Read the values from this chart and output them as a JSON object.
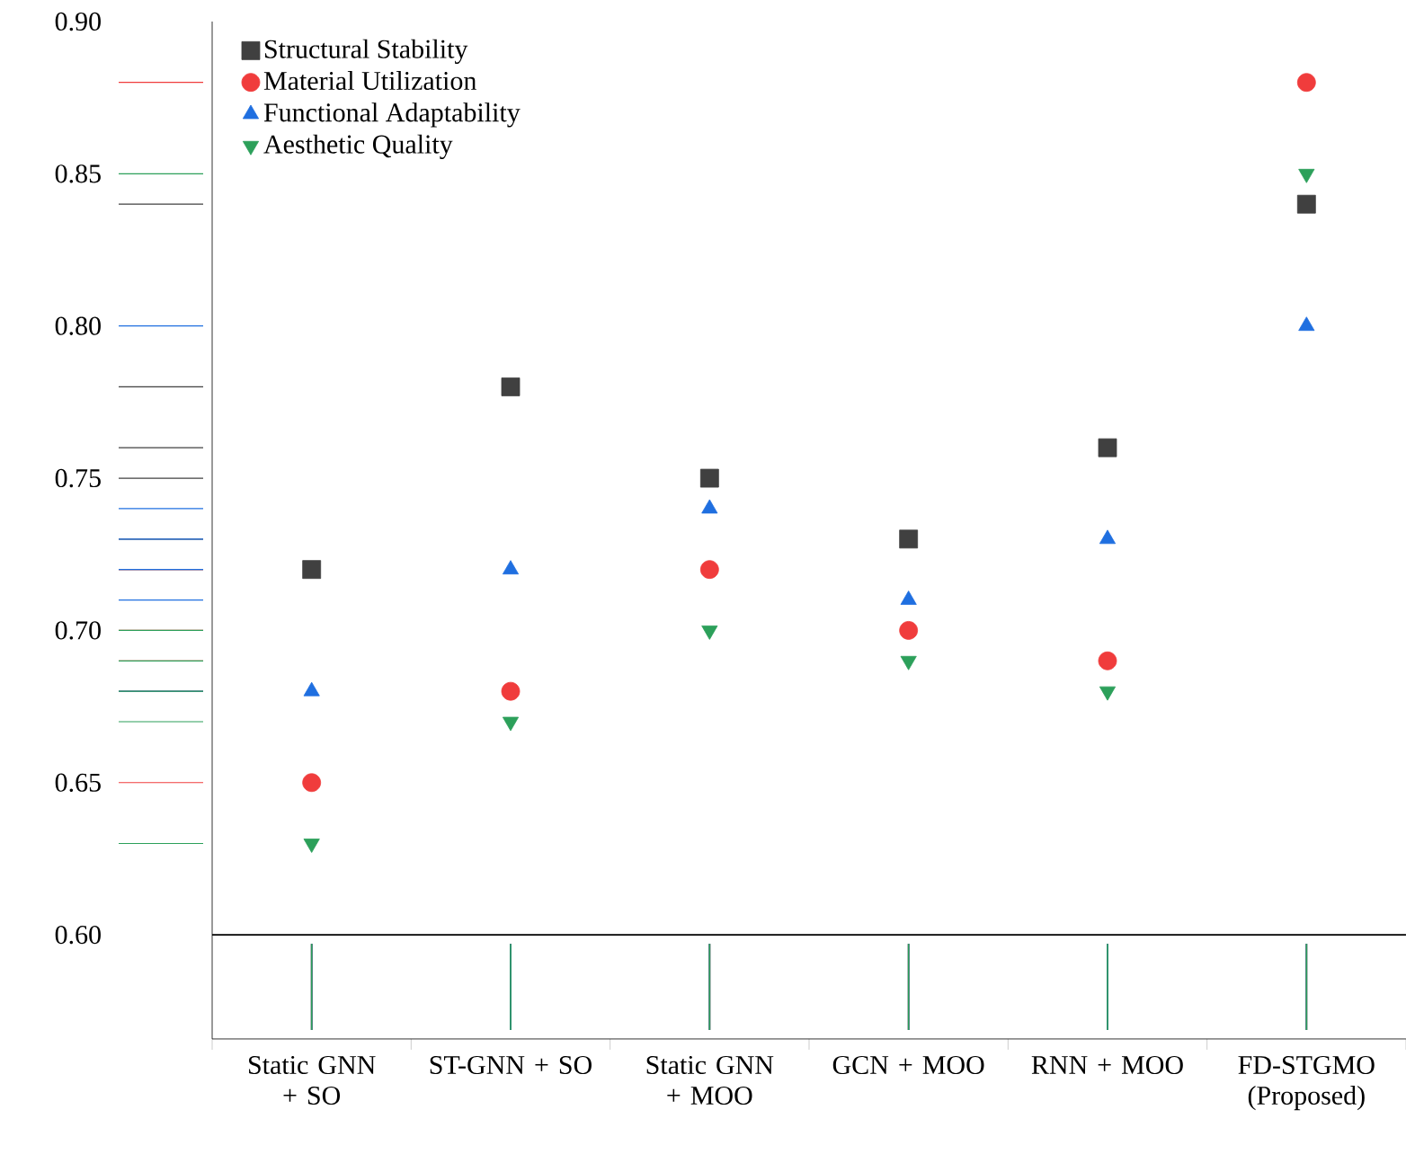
{
  "chart_data": {
    "type": "scatter",
    "categories": [
      "Static GNN + SO",
      "ST-GNN + SO",
      "Static GNN + MOO",
      "GCN + MOO",
      "RNN + MOO",
      "FD-STGMO (Proposed)"
    ],
    "ylim": [
      0.6,
      0.9
    ],
    "yticks": [
      {
        "value": 0.6,
        "label": "0.60"
      },
      0.65,
      {
        "value": 0.7,
        "label": "0.70"
      },
      0.75,
      {
        "value": 0.8,
        "label": "0.80"
      },
      0.85,
      {
        "value": 0.9,
        "label": "0.90"
      }
    ],
    "legend": "top left",
    "grid": false,
    "series": [
      {
        "name": "Structural Stability",
        "color": "#404040",
        "marker": "square",
        "values": [
          0.72,
          0.78,
          0.75,
          0.73,
          0.76,
          0.84
        ]
      },
      {
        "name": "Material Utilization",
        "color": "#f03c3c",
        "marker": "circle",
        "values": [
          0.65,
          0.68,
          0.72,
          0.7,
          0.69,
          0.88
        ]
      },
      {
        "name": "Functional Adaptability",
        "color": "#1f6fe0",
        "marker": "triangle",
        "values": [
          0.68,
          0.72,
          0.74,
          0.71,
          0.73,
          0.8
        ]
      },
      {
        "name": "Aesthetic Quality",
        "color": "#2ca05a",
        "marker": "triangle down",
        "values": [
          0.63,
          0.67,
          0.7,
          0.69,
          0.68,
          0.85
        ]
      }
    ]
  }
}
